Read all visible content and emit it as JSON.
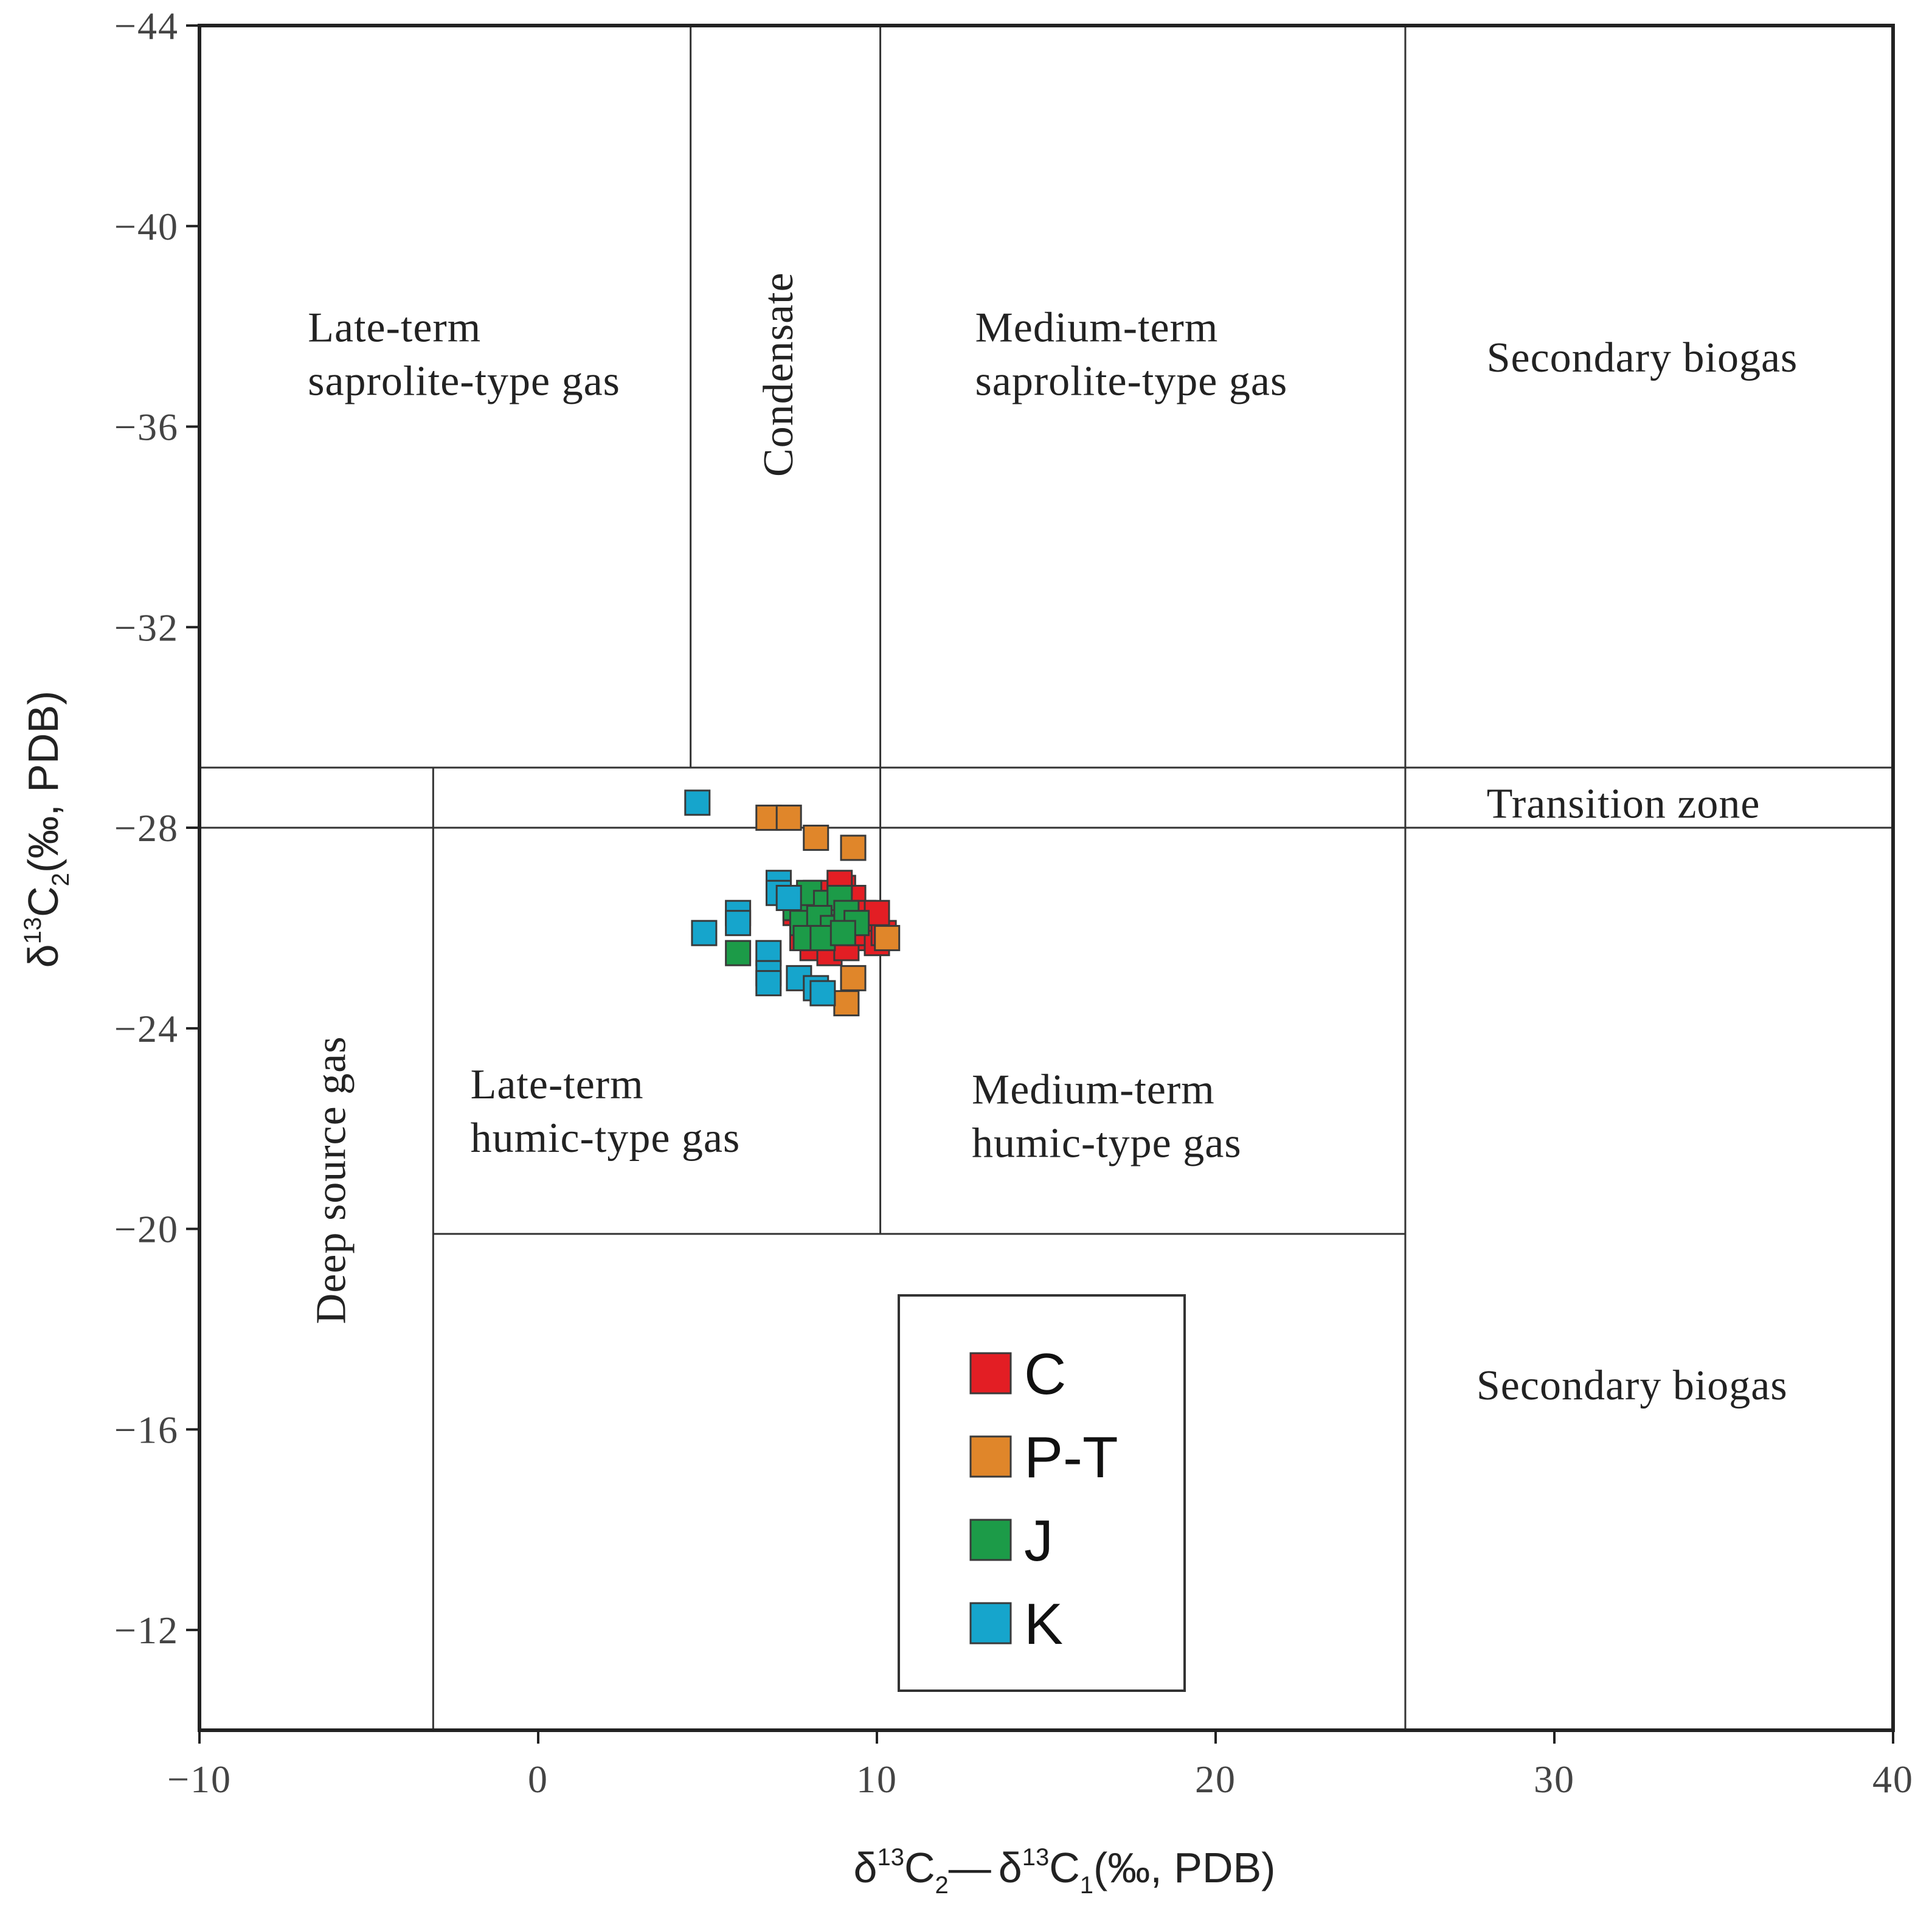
{
  "chart_data": {
    "type": "scatter",
    "xlabel": {
      "delta": "δ",
      "sup1": "13",
      "c2": "C",
      "sub2": "2",
      "dash": "—",
      "delta2": "δ",
      "sup3": "13",
      "c1": "C",
      "sub1": "1",
      "units": "(‰, PDB)"
    },
    "ylabel": {
      "delta": "δ",
      "sup": "13",
      "c": "C",
      "sub": "2",
      "units": "(‰, PDB)"
    },
    "xlim": [
      -10,
      40
    ],
    "ylim": [
      -44,
      -10
    ],
    "y_reversed": true,
    "x_ticks": [
      {
        "value": -10,
        "label": "−10"
      },
      {
        "value": 0,
        "label": "0"
      },
      {
        "value": 10,
        "label": "10"
      },
      {
        "value": 20,
        "label": "20"
      },
      {
        "value": 30,
        "label": "30"
      },
      {
        "value": 40,
        "label": "40"
      }
    ],
    "y_ticks": [
      {
        "value": -44,
        "label": "−44"
      },
      {
        "value": -40,
        "label": "−40"
      },
      {
        "value": -36,
        "label": "−36"
      },
      {
        "value": -32,
        "label": "−32"
      },
      {
        "value": -28,
        "label": "−28"
      },
      {
        "value": -24,
        "label": "−24"
      },
      {
        "value": -20,
        "label": "−20"
      },
      {
        "value": -16,
        "label": "−16"
      },
      {
        "value": -12,
        "label": "−12"
      }
    ],
    "zone_lines": [
      {
        "x1": 4.5,
        "y1": -44,
        "x2": 4.5,
        "y2": -29.2
      },
      {
        "x1": 10.1,
        "y1": -44,
        "x2": 10.1,
        "y2": -19.9
      },
      {
        "x1": 25.6,
        "y1": -44,
        "x2": 25.6,
        "y2": -10.0
      },
      {
        "x1": -3.1,
        "y1": -29.2,
        "x2": -3.1,
        "y2": -10.0
      },
      {
        "x1": -10,
        "y1": -29.2,
        "x2": 40,
        "y2": -29.2
      },
      {
        "x1": -10,
        "y1": -28.0,
        "x2": 40,
        "y2": -28.0
      },
      {
        "x1": -3.1,
        "y1": -19.9,
        "x2": 25.6,
        "y2": -19.9
      }
    ],
    "zones": [
      {
        "lines": [
          "Late-term",
          "saprolite-type gas"
        ],
        "x": -6.8,
        "y": -37.7,
        "rotate": false
      },
      {
        "lines": [
          "Condensate"
        ],
        "x": 7.5,
        "y": -35.0,
        "rotate": true
      },
      {
        "lines": [
          "Medium-term",
          "saprolite-type gas"
        ],
        "x": 12.9,
        "y": -37.7,
        "rotate": false
      },
      {
        "lines": [
          "Secondary biogas"
        ],
        "x": 28.0,
        "y": -37.1,
        "rotate": false
      },
      {
        "lines": [
          "Transition zone"
        ],
        "x": 28.0,
        "y": -28.2,
        "rotate": false
      },
      {
        "lines": [
          "Late-term",
          "humic-type gas"
        ],
        "x": -2.0,
        "y": -22.6,
        "rotate": false
      },
      {
        "lines": [
          "Medium-term",
          "humic-type gas"
        ],
        "x": 12.8,
        "y": -22.5,
        "rotate": false
      },
      {
        "lines": [
          "Deep source gas"
        ],
        "x": -5.7,
        "y": -18.1,
        "rotate": true
      },
      {
        "lines": [
          "Secondary biogas"
        ],
        "x": 27.7,
        "y": -16.6,
        "rotate": false
      }
    ],
    "series": [
      {
        "name": "C",
        "color": "#e31e24",
        "points": [
          [
            8.2,
            -26.7
          ],
          [
            8.6,
            -26.5
          ],
          [
            9.0,
            -26.8
          ],
          [
            9.3,
            -26.6
          ],
          [
            9.6,
            -26.3
          ],
          [
            9.9,
            -26.1
          ],
          [
            8.4,
            -26.2
          ],
          [
            8.8,
            -25.9
          ],
          [
            9.2,
            -26.0
          ],
          [
            9.7,
            -25.8
          ],
          [
            8.1,
            -25.6
          ],
          [
            8.6,
            -25.5
          ],
          [
            9.1,
            -25.6
          ],
          [
            9.5,
            -25.9
          ],
          [
            10.0,
            -25.7
          ],
          [
            10.2,
            -25.9
          ],
          [
            10.0,
            -26.3
          ],
          [
            8.9,
            -26.9
          ],
          [
            7.6,
            -26.3
          ],
          [
            7.8,
            -25.8
          ]
        ]
      },
      {
        "name": "P-T",
        "color": "#e0862a",
        "points": [
          [
            6.8,
            -28.2
          ],
          [
            7.4,
            -28.2
          ],
          [
            8.2,
            -27.8
          ],
          [
            9.3,
            -27.6
          ],
          [
            10.3,
            -25.8
          ],
          [
            9.3,
            -25.0
          ],
          [
            9.1,
            -24.5
          ]
        ]
      },
      {
        "name": "J",
        "color": "#1c9b48",
        "points": [
          [
            7.6,
            -26.4
          ],
          [
            8.0,
            -26.7
          ],
          [
            8.5,
            -26.5
          ],
          [
            8.9,
            -26.6
          ],
          [
            7.8,
            -26.1
          ],
          [
            8.3,
            -26.2
          ],
          [
            8.7,
            -26.0
          ],
          [
            9.1,
            -26.3
          ],
          [
            9.4,
            -26.1
          ],
          [
            7.9,
            -25.8
          ],
          [
            8.4,
            -25.8
          ],
          [
            9.0,
            -25.9
          ],
          [
            5.9,
            -25.5
          ]
        ]
      },
      {
        "name": "K",
        "color": "#16a5cc",
        "points": [
          [
            4.7,
            -28.5
          ],
          [
            7.1,
            -26.9
          ],
          [
            7.1,
            -26.7
          ],
          [
            5.9,
            -26.3
          ],
          [
            5.9,
            -26.1
          ],
          [
            4.9,
            -25.9
          ],
          [
            6.8,
            -25.5
          ],
          [
            6.8,
            -25.1
          ],
          [
            6.8,
            -24.9
          ],
          [
            7.7,
            -25.0
          ],
          [
            8.2,
            -24.8
          ],
          [
            8.4,
            -24.7
          ],
          [
            7.4,
            -26.6
          ]
        ]
      }
    ],
    "legend": {
      "placement": "bottom-center",
      "entries": [
        {
          "label": "C",
          "color": "#e31e24"
        },
        {
          "label": "P-T",
          "color": "#e0862a"
        },
        {
          "label": "J",
          "color": "#1c9b48"
        },
        {
          "label": "K",
          "color": "#16a5cc"
        }
      ]
    }
  }
}
